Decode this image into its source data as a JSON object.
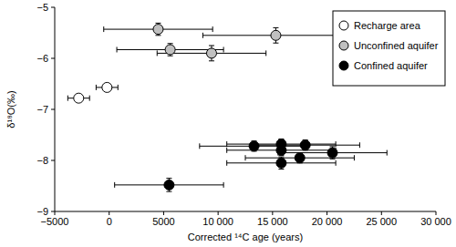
{
  "chart_data": {
    "type": "scatter",
    "x_label": "Corrected ¹⁴C age (years)",
    "y_label": "δ¹⁸O(‰)",
    "xlim": [
      -5000,
      30000
    ],
    "ylim": [
      -9,
      -5
    ],
    "xticks": [
      {
        "value": -5000,
        "label": "−5000"
      },
      0,
      5000,
      {
        "value": 10000,
        "label": "10 000"
      },
      {
        "value": 15000,
        "label": "15 000"
      },
      {
        "value": 20000,
        "label": "20 000"
      },
      {
        "value": 25000,
        "label": "25 000"
      },
      {
        "value": 30000,
        "label": "30 000"
      }
    ],
    "yticks": [
      {
        "value": -9,
        "label": "−9"
      },
      {
        "value": -8,
        "label": "−8"
      },
      {
        "value": -7,
        "label": "−7"
      },
      {
        "value": -6,
        "label": "−6"
      },
      {
        "value": -5,
        "label": "−5"
      }
    ],
    "grid": false,
    "legend": "upper right",
    "series": [
      {
        "name": "Recharge area",
        "color": "#ffffff",
        "marker": "circle",
        "x": [
          -2800,
          -200
        ],
        "values": [
          -6.78,
          -6.57
        ],
        "x_errors": [
          1000,
          1000
        ]
      },
      {
        "name": "Unconfined aquifer",
        "color": "#c0c0c0",
        "marker": "circle",
        "x": [
          4500,
          15300,
          5600,
          9400
        ],
        "values": [
          -5.43,
          -5.55,
          -5.83,
          -5.9
        ],
        "x_errors": [
          5000,
          6700,
          4900,
          5000
        ],
        "y_errors": [
          0.12,
          0.15,
          0.12,
          0.15
        ]
      },
      {
        "name": "Confined aquifer",
        "color": "#000000",
        "marker": "circle",
        "x": [
          5500,
          13300,
          15800,
          15800,
          15800,
          18000,
          17500,
          20500
        ],
        "values": [
          -8.48,
          -7.72,
          -7.68,
          -7.8,
          -8.05,
          -7.7,
          -7.95,
          -7.85
        ],
        "x_errors": [
          5000,
          5000,
          5000,
          5000,
          5000,
          5000,
          5000,
          5000
        ],
        "y_errors": [
          0.13,
          0.1,
          0.1,
          0.1,
          0.12,
          0.1,
          0.1,
          0.12
        ]
      }
    ]
  }
}
